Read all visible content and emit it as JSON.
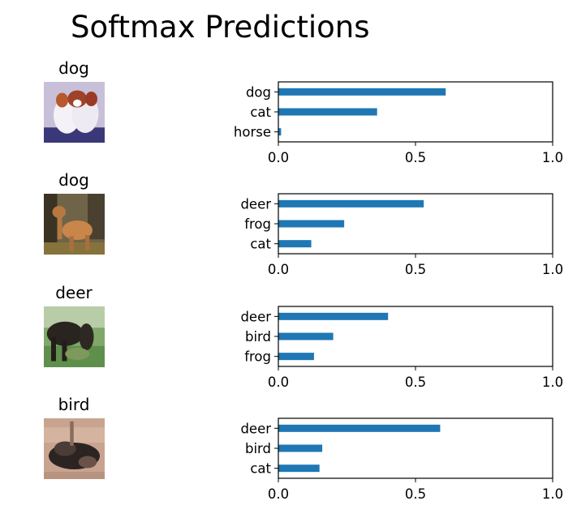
{
  "title": "Softmax Predictions",
  "colors": {
    "bar": "#1f77b4"
  },
  "images": [
    {
      "true_label": "dog",
      "picture": "dog-photo-thumbnail"
    },
    {
      "true_label": "dog",
      "picture": "dog-photo-thumbnail"
    },
    {
      "true_label": "deer",
      "picture": "horse-photo-thumbnail"
    },
    {
      "true_label": "bird",
      "picture": "bird-photo-thumbnail"
    }
  ],
  "chart_data": [
    {
      "type": "bar",
      "orientation": "horizontal",
      "categories": [
        "dog",
        "cat",
        "horse"
      ],
      "values": [
        0.61,
        0.36,
        0.01
      ],
      "xlim": [
        0,
        1
      ],
      "xticks": [
        "0.0",
        "0.5",
        "1.0"
      ],
      "grid": false
    },
    {
      "type": "bar",
      "orientation": "horizontal",
      "categories": [
        "deer",
        "frog",
        "cat"
      ],
      "values": [
        0.53,
        0.24,
        0.12
      ],
      "xlim": [
        0,
        1
      ],
      "xticks": [
        "0.0",
        "0.5",
        "1.0"
      ],
      "grid": false
    },
    {
      "type": "bar",
      "orientation": "horizontal",
      "categories": [
        "deer",
        "bird",
        "frog"
      ],
      "values": [
        0.4,
        0.2,
        0.13
      ],
      "xlim": [
        0,
        1
      ],
      "xticks": [
        "0.0",
        "0.5",
        "1.0"
      ],
      "grid": false
    },
    {
      "type": "bar",
      "orientation": "horizontal",
      "categories": [
        "deer",
        "bird",
        "cat"
      ],
      "values": [
        0.59,
        0.16,
        0.15
      ],
      "xlim": [
        0,
        1
      ],
      "xticks": [
        "0.0",
        "0.5",
        "1.0"
      ],
      "grid": false
    }
  ]
}
